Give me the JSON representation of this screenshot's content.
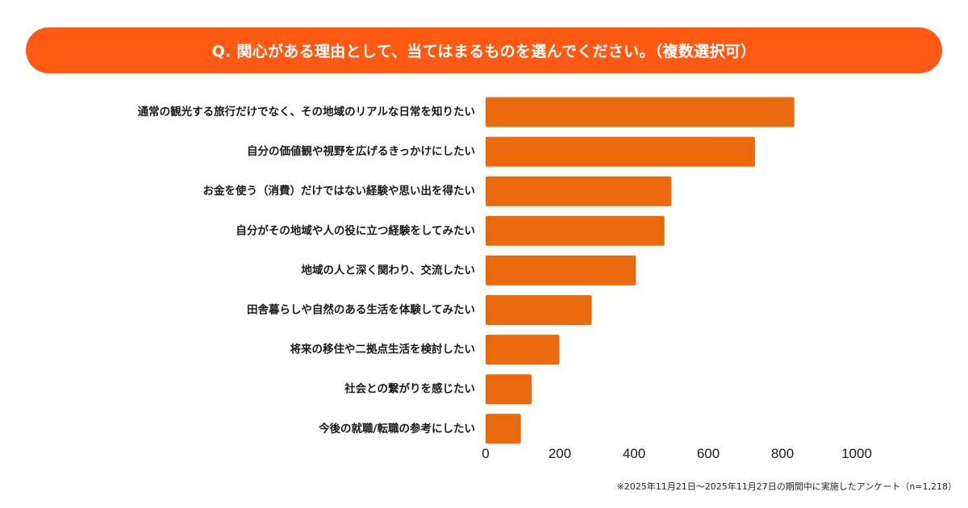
{
  "title": "Q. 関心がある理由として、当てはまるものを選んでください。（複数選択可）",
  "footnote": "※2025年11月21日〜2025年11月27日の期間中に実施したアンケート（n=1,218）",
  "colors": {
    "banner": "#ff5a14",
    "bar": "#eb6a0e",
    "text": "#1a1a1a"
  },
  "chart_data": {
    "type": "bar",
    "orientation": "horizontal",
    "categories": [
      "通常の観光する旅行だけでなく、その地域のリアルな日常を知りたい",
      "自分の価値観や視野を広げるきっかけにしたい",
      "お金を使う（消費）だけではない経験や思い出を得たい",
      "自分がその地域や人の役に立つ経験をしてみたい",
      "地域の人と深く関わり、交流したい",
      "田舎暮らしや自然のある生活を体験してみたい",
      "将来の移住や二拠点生活を検討したい",
      "社会との繋がりを感じたい",
      "今後の就職/転職の参考にしたい"
    ],
    "values": [
      832,
      726,
      501,
      482,
      405,
      286,
      199,
      124,
      95
    ],
    "xlim": [
      0,
      1000
    ],
    "xticks": [
      "0",
      "200",
      "400",
      "600",
      "800",
      "1000"
    ],
    "xtick_values": [
      0,
      200,
      400,
      600,
      800,
      1000
    ],
    "grid": false,
    "legend": "none"
  }
}
